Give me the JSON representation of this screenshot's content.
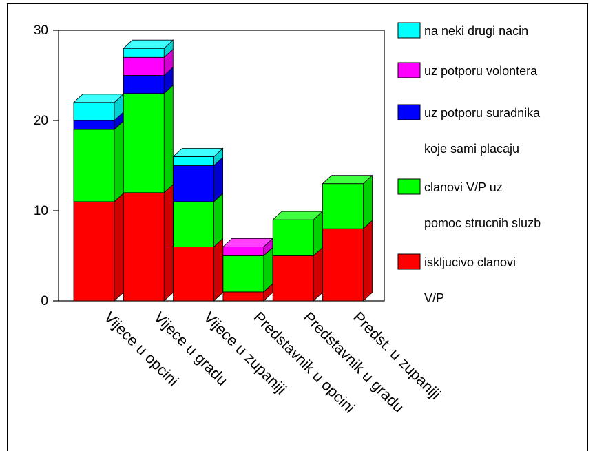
{
  "chart_data": {
    "type": "bar",
    "stacked": true,
    "three_d": true,
    "categories": [
      "Vijece u opcini",
      "Vijece u gradu",
      "Vijece u zupaniji",
      "Predstavnik u opcini",
      "Predstavnik u gradu",
      "Predst. u zupaniji"
    ],
    "series": [
      {
        "name": "iskljucivo clanovi V/P",
        "legend_lines": [
          "iskljucivo clanovi",
          "V/P"
        ],
        "color": "#ff0000",
        "values": [
          11,
          12,
          6,
          1,
          5,
          8
        ]
      },
      {
        "name": "clanovi V/P uz pomoc strucnih sluzb",
        "legend_lines": [
          "clanovi V/P uz",
          "pomoc strucnih sluzb"
        ],
        "color": "#00ff00",
        "values": [
          8,
          11,
          5,
          4,
          4,
          5
        ]
      },
      {
        "name": "uz potporu suradnika koje sami placaju",
        "legend_lines": [
          "uz potporu suradnika",
          "koje sami placaju"
        ],
        "color": "#0000ff",
        "values": [
          1,
          2,
          4,
          0,
          0,
          0
        ]
      },
      {
        "name": "uz potporu volontera",
        "legend_lines": [
          "uz potporu volontera"
        ],
        "color": "#ff00ff",
        "values": [
          0,
          2,
          0,
          1,
          0,
          0
        ]
      },
      {
        "name": "na neki drugi nacin",
        "legend_lines": [
          "na neki drugi nacin"
        ],
        "color": "#00ffff",
        "values": [
          2,
          1,
          1,
          0,
          0,
          0
        ]
      }
    ],
    "ylim": [
      0,
      30
    ],
    "yticks": [
      0,
      10,
      20,
      30
    ],
    "xlabel": "",
    "ylabel": "",
    "legend_position": "right",
    "grid": false
  }
}
